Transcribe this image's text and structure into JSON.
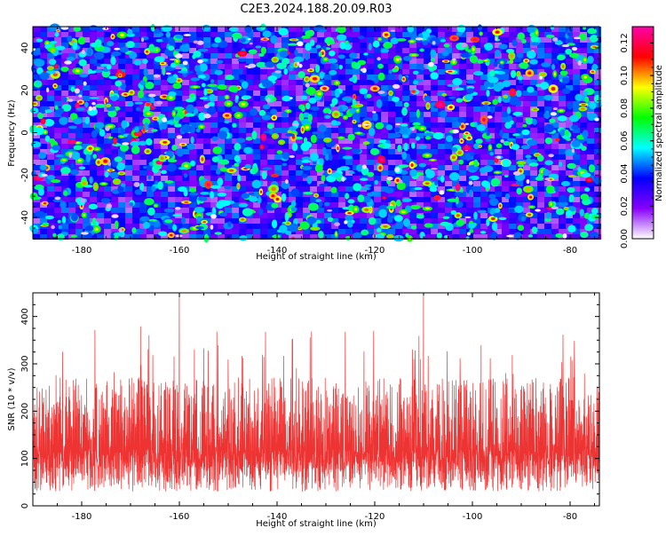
{
  "page": {
    "title": "C2E3.2024.188.20.09.R03"
  },
  "chart_data": [
    {
      "type": "heatmap",
      "panel": "spectrogram",
      "title": "C2E3.2024.188.20.09.R03",
      "xlabel": "Height of straight line (km)",
      "ylabel": "Frequency (Hz)",
      "xlim": [
        -190,
        -74
      ],
      "ylim": [
        -50,
        50
      ],
      "xticks": [
        -180,
        -160,
        -140,
        -120,
        -100,
        -80
      ],
      "yticks": [
        -40,
        -20,
        0,
        20,
        40
      ],
      "colorbar": {
        "label": "Normalized spectral amplitude",
        "range": [
          0,
          0.13
        ],
        "ticks": [
          "0.00",
          "0.02",
          "0.04",
          "0.06",
          "0.08",
          "0.10",
          "0.12"
        ],
        "colors": [
          "#ffffff",
          "#8800ff",
          "#0000ff",
          "#00ffff",
          "#00ff00",
          "#ffff00",
          "#ff0000",
          "#ff00aa"
        ]
      },
      "values": "dense random speckle field, mostly 0.02-0.06, sparse peaks up to ~0.12"
    },
    {
      "type": "line",
      "panel": "snr",
      "xlabel": "Height of straight line (km)",
      "ylabel": "SNR (10 * v/v)",
      "xlim": [
        -190,
        -74
      ],
      "ylim": [
        0,
        450
      ],
      "xticks": [
        -180,
        -160,
        -140,
        -120,
        -100,
        -80
      ],
      "yticks": [
        0,
        100,
        200,
        300,
        400
      ],
      "color": "#ee3333",
      "series": [
        {
          "name": "SNR",
          "typical_range": [
            40,
            280
          ],
          "mean": 120,
          "peaks": [
            {
              "x": -160,
              "y": 440
            },
            {
              "x": -110,
              "y": 450
            }
          ]
        }
      ]
    }
  ]
}
